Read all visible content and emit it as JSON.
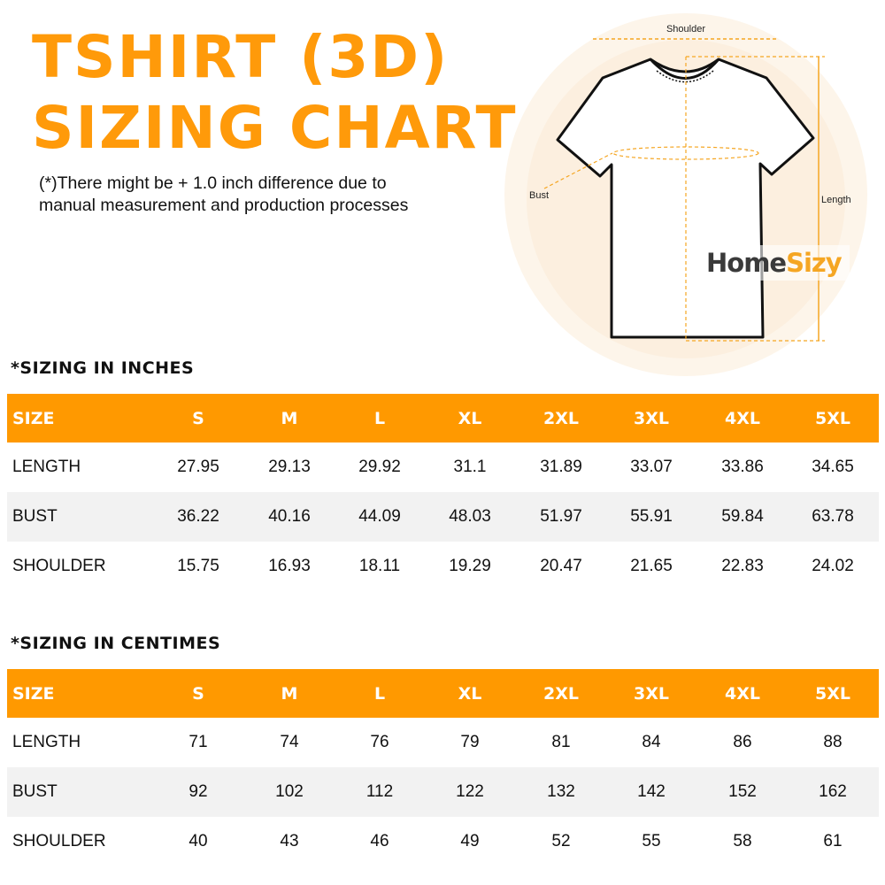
{
  "title_line1": "TSHIRT (3D)",
  "title_line2": "SIZING CHART",
  "note_line1": "(*)There might be + 1.0 inch difference due to",
  "note_line2": "manual measurement and production processes",
  "diagram": {
    "shoulder": "Shoulder",
    "bust": "Bust",
    "length": "Length",
    "logo_home": "Home",
    "logo_sizy": "Sizy"
  },
  "colors": {
    "accent": "#ff9900",
    "alt_row": "#f2f2f2"
  },
  "tables": [
    {
      "title": "*SIZING IN INCHES",
      "headers": [
        "SIZE",
        "S",
        "M",
        "L",
        "XL",
        "2XL",
        "3XL",
        "4XL",
        "5XL"
      ],
      "rows": [
        {
          "label": "LENGTH",
          "values": [
            "27.95",
            "29.13",
            "29.92",
            "31.1",
            "31.89",
            "33.07",
            "33.86",
            "34.65"
          ]
        },
        {
          "label": "BUST",
          "values": [
            "36.22",
            "40.16",
            "44.09",
            "48.03",
            "51.97",
            "55.91",
            "59.84",
            "63.78"
          ]
        },
        {
          "label": "SHOULDER",
          "values": [
            "15.75",
            "16.93",
            "18.11",
            "19.29",
            "20.47",
            "21.65",
            "22.83",
            "24.02"
          ]
        }
      ]
    },
    {
      "title": "*SIZING IN CENTIMES",
      "headers": [
        "SIZE",
        "S",
        "M",
        "L",
        "XL",
        "2XL",
        "3XL",
        "4XL",
        "5XL"
      ],
      "rows": [
        {
          "label": "LENGTH",
          "values": [
            "71",
            "74",
            "76",
            "79",
            "81",
            "84",
            "86",
            "88"
          ]
        },
        {
          "label": "BUST",
          "values": [
            "92",
            "102",
            "112",
            "122",
            "132",
            "142",
            "152",
            "162"
          ]
        },
        {
          "label": "SHOULDER",
          "values": [
            "40",
            "43",
            "46",
            "49",
            "52",
            "55",
            "58",
            "61"
          ]
        }
      ]
    }
  ]
}
